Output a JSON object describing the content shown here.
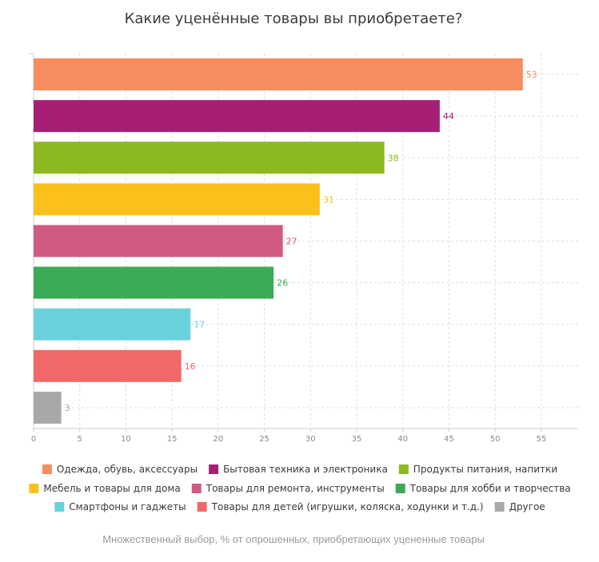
{
  "chart_data": {
    "type": "bar",
    "orientation": "horizontal",
    "title": "Какие уценённые товары вы приобретаете?",
    "note": "Множественный выбор, % от опрошенных, приобретающих уцененные товары",
    "xlim": [
      0,
      59
    ],
    "xticks": [
      0,
      5,
      10,
      15,
      20,
      25,
      30,
      35,
      40,
      45,
      50,
      55
    ],
    "grid": true,
    "legend_position": "bottom",
    "categories": [
      "Одежда, обувь, аксессуары",
      "Бытовая техника и электроника",
      "Продукты питания, напитки",
      "Мебель и товары для дома",
      "Товары для ремонта, инструменты",
      "Товары для хобби и творчества",
      "Смартфоны и гаджеты",
      "Товары для детей (игрушки, коляска, ходунки и т.д.)",
      "Другое"
    ],
    "values": [
      53,
      44,
      38,
      31,
      27,
      26,
      17,
      16,
      3
    ],
    "colors": [
      "#f58d5f",
      "#a61f74",
      "#8cb921",
      "#fbc11b",
      "#d15b80",
      "#3bab55",
      "#68d1db",
      "#f26868",
      "#a8a8a8"
    ]
  }
}
